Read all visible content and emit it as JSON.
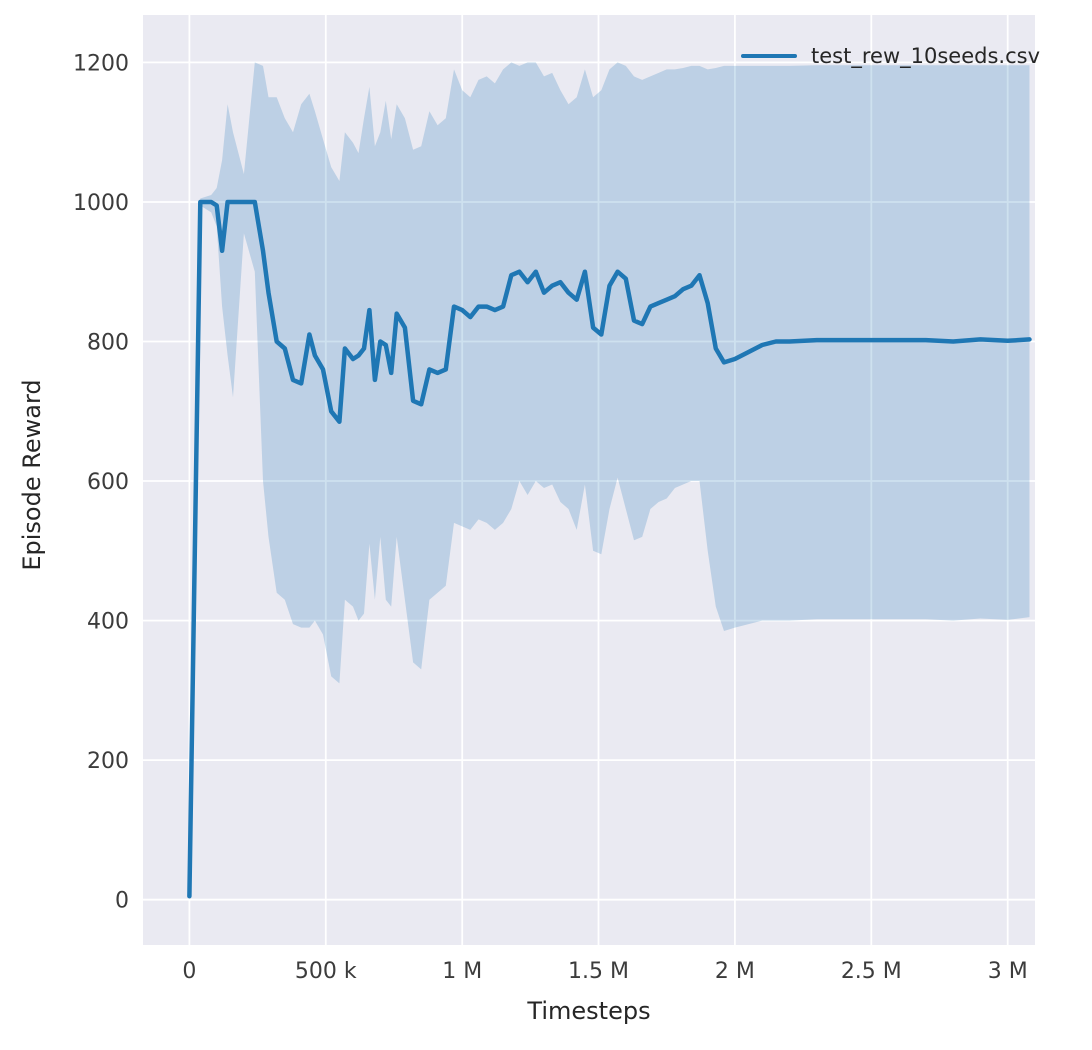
{
  "chart_data": {
    "type": "line",
    "title": "",
    "xlabel": "Timesteps",
    "ylabel": "Episode Reward",
    "xlim": [
      -170000,
      3100000
    ],
    "ylim": [
      -65,
      1268
    ],
    "grid": true,
    "legend_position": "upper right",
    "figure_bg": "#ffffff",
    "plot_bg": "#eaeaf2",
    "grid_color": "#ffffff",
    "tick_color": "#3c3c3c",
    "label_color": "#262626",
    "x_ticks": [
      {
        "value": 0,
        "label": "0"
      },
      {
        "value": 500000,
        "label": "500 k"
      },
      {
        "value": 1000000,
        "label": "1 M"
      },
      {
        "value": 1500000,
        "label": "1.5 M"
      },
      {
        "value": 2000000,
        "label": "2 M"
      },
      {
        "value": 2500000,
        "label": "2.5 M"
      },
      {
        "value": 3000000,
        "label": "3 M"
      }
    ],
    "y_ticks": [
      {
        "value": 0,
        "label": "0"
      },
      {
        "value": 200,
        "label": "200"
      },
      {
        "value": 400,
        "label": "400"
      },
      {
        "value": 600,
        "label": "600"
      },
      {
        "value": 800,
        "label": "800"
      },
      {
        "value": 1000,
        "label": "1000"
      },
      {
        "value": 1200,
        "label": "1200"
      }
    ],
    "series": [
      {
        "name": "test_rew_10seeds.csv",
        "color": "#1f77b4",
        "band_opacity": 0.22,
        "x": [
          0,
          40000,
          80000,
          100000,
          120000,
          140000,
          160000,
          200000,
          240000,
          270000,
          290000,
          320000,
          350000,
          380000,
          410000,
          440000,
          460000,
          490000,
          520000,
          550000,
          570000,
          600000,
          620000,
          640000,
          660000,
          680000,
          700000,
          720000,
          740000,
          760000,
          790000,
          820000,
          850000,
          880000,
          910000,
          940000,
          970000,
          1000000,
          1030000,
          1060000,
          1090000,
          1120000,
          1150000,
          1180000,
          1210000,
          1240000,
          1270000,
          1300000,
          1330000,
          1360000,
          1390000,
          1420000,
          1450000,
          1480000,
          1510000,
          1540000,
          1570000,
          1600000,
          1630000,
          1660000,
          1690000,
          1720000,
          1750000,
          1780000,
          1810000,
          1840000,
          1870000,
          1900000,
          1930000,
          1960000,
          2000000,
          2050000,
          2100000,
          2150000,
          2200000,
          2300000,
          2400000,
          2500000,
          2600000,
          2700000,
          2800000,
          2900000,
          3000000,
          3080000
        ],
        "mean": [
          5,
          1000,
          1000,
          995,
          930,
          1000,
          1000,
          1000,
          1000,
          930,
          870,
          800,
          790,
          745,
          740,
          810,
          780,
          760,
          700,
          685,
          790,
          775,
          780,
          790,
          845,
          745,
          800,
          795,
          755,
          840,
          820,
          715,
          710,
          760,
          755,
          760,
          850,
          845,
          835,
          850,
          850,
          845,
          850,
          895,
          900,
          885,
          900,
          870,
          880,
          885,
          870,
          860,
          900,
          820,
          810,
          880,
          900,
          890,
          830,
          825,
          850,
          855,
          860,
          865,
          875,
          880,
          895,
          855,
          790,
          770,
          775,
          785,
          795,
          800,
          800,
          802,
          802,
          802,
          802,
          802,
          800,
          803,
          801,
          803
        ],
        "lower": [
          5,
          995,
          985,
          965,
          850,
          780,
          720,
          955,
          900,
          600,
          520,
          440,
          430,
          395,
          390,
          390,
          400,
          380,
          320,
          310,
          430,
          420,
          400,
          410,
          510,
          430,
          520,
          430,
          420,
          520,
          430,
          340,
          330,
          430,
          440,
          450,
          540,
          535,
          530,
          545,
          540,
          530,
          540,
          560,
          600,
          580,
          600,
          590,
          595,
          570,
          560,
          530,
          595,
          500,
          495,
          560,
          605,
          560,
          515,
          520,
          560,
          570,
          575,
          590,
          595,
          600,
          600,
          500,
          420,
          385,
          390,
          395,
          400,
          400,
          400,
          402,
          402,
          402,
          402,
          402,
          400,
          403,
          401,
          405
        ],
        "upper": [
          5,
          1005,
          1010,
          1020,
          1060,
          1140,
          1100,
          1040,
          1200,
          1195,
          1150,
          1150,
          1120,
          1100,
          1140,
          1155,
          1130,
          1090,
          1050,
          1030,
          1100,
          1085,
          1070,
          1120,
          1165,
          1080,
          1100,
          1145,
          1090,
          1140,
          1120,
          1075,
          1080,
          1130,
          1110,
          1120,
          1190,
          1160,
          1150,
          1175,
          1180,
          1170,
          1190,
          1200,
          1195,
          1200,
          1200,
          1180,
          1185,
          1160,
          1140,
          1150,
          1190,
          1150,
          1160,
          1190,
          1200,
          1195,
          1180,
          1175,
          1180,
          1185,
          1190,
          1190,
          1192,
          1195,
          1195,
          1190,
          1192,
          1195,
          1195,
          1195,
          1195,
          1195,
          1195,
          1196,
          1196,
          1196,
          1196,
          1196,
          1196,
          1196,
          1196,
          1196
        ]
      }
    ]
  }
}
